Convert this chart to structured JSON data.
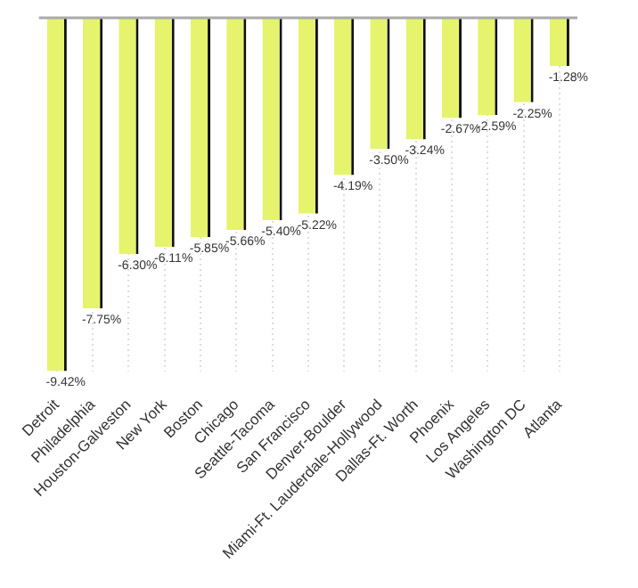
{
  "chart_data": {
    "type": "bar",
    "categories": [
      "Detroit",
      "Philadelphia",
      "Houston-Galveston",
      "New York",
      "Boston",
      "Chicago",
      "Seattle-Tacoma",
      "San Francisco",
      "Denver-Boulder",
      "Miami-Ft. Lauderdale-Hollywood",
      "Dallas-Ft. Worth",
      "Phoenix",
      "Los Angeles",
      "Washington DC",
      "Atlanta"
    ],
    "values": [
      -9.42,
      -7.75,
      -6.3,
      -6.11,
      -5.85,
      -5.66,
      -5.4,
      -5.22,
      -4.19,
      -3.5,
      -3.24,
      -2.67,
      -2.59,
      -2.25,
      -1.28
    ],
    "value_labels": [
      "-9.42%",
      "-7.75%",
      "-6.30%",
      "-6.11%",
      "-5.85%",
      "-5.66%",
      "-5.40%",
      "-5.22%",
      "-4.19%",
      "-3.50%",
      "-3.24%",
      "-2.67%",
      "-2.59%",
      "-2.25%",
      "-1.28%"
    ],
    "color": "#e6f36c",
    "grid": "x",
    "legend": false
  }
}
